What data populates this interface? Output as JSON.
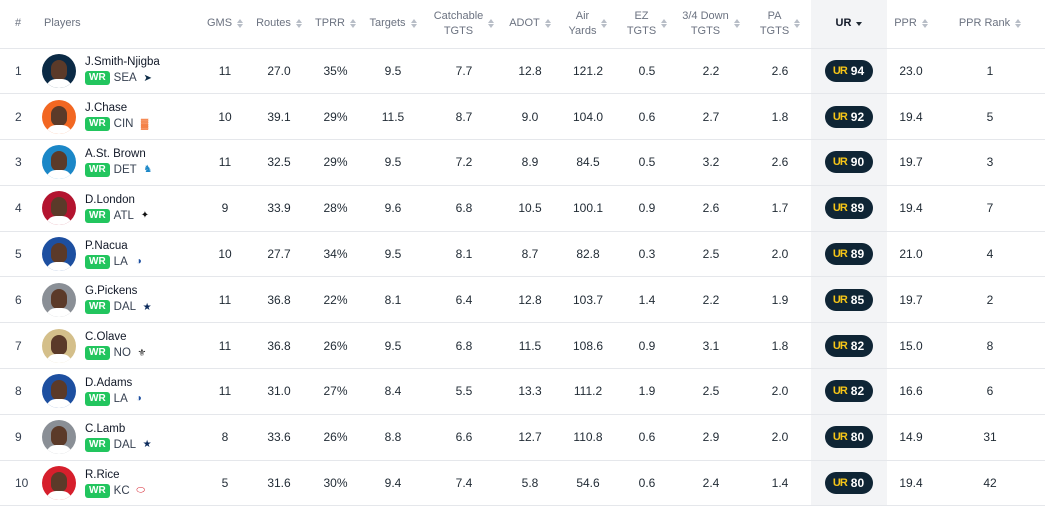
{
  "columns": [
    {
      "key": "rank",
      "label": "#",
      "sortable": false
    },
    {
      "key": "player",
      "label": "Players",
      "sortable": false
    },
    {
      "key": "gms",
      "label": "GMS",
      "sortable": true
    },
    {
      "key": "routes",
      "label": "Routes",
      "sortable": true
    },
    {
      "key": "tprr",
      "label": "TPRR",
      "sortable": true
    },
    {
      "key": "targets",
      "label": "Targets",
      "sortable": true
    },
    {
      "key": "catchable",
      "label": "Catchable\nTGTS",
      "sortable": true
    },
    {
      "key": "adot",
      "label": "ADOT",
      "sortable": true
    },
    {
      "key": "air",
      "label": "Air\nYards",
      "sortable": true
    },
    {
      "key": "ez",
      "label": "EZ\nTGTS",
      "sortable": true
    },
    {
      "key": "down",
      "label": "3/4 Down\nTGTS",
      "sortable": true
    },
    {
      "key": "pa",
      "label": "PA\nTGTS",
      "sortable": true
    },
    {
      "key": "ur",
      "label": "UR",
      "sortable": true,
      "active": true
    },
    {
      "key": "ppr",
      "label": "PPR",
      "sortable": true
    },
    {
      "key": "ppr_rank",
      "label": "PPR Rank",
      "sortable": true
    }
  ],
  "ur_mark": "UR",
  "colors": {
    "position_badge": "#22c55e",
    "ur_badge_bg": "#0f2535",
    "ur_badge_mark": "#f5c518",
    "active_col_bg": "#f3f4f6"
  },
  "rows": [
    {
      "rank": "1",
      "name": "J.Smith-Njigba",
      "pos": "WR",
      "team": "SEA",
      "team_icon": "seahawks-logo-icon",
      "avatar_color": "#0b2a45",
      "gms": "11",
      "routes": "27.0",
      "tprr": "35%",
      "targets": "9.5",
      "catchable": "7.7",
      "adot": "12.8",
      "air": "121.2",
      "ez": "0.5",
      "down": "2.2",
      "pa": "2.6",
      "ur": "94",
      "ppr": "23.0",
      "ppr_rank": "1"
    },
    {
      "rank": "2",
      "name": "J.Chase",
      "pos": "WR",
      "team": "CIN",
      "team_icon": "bengals-logo-icon",
      "avatar_color": "#f26722",
      "gms": "10",
      "routes": "39.1",
      "tprr": "29%",
      "targets": "11.5",
      "catchable": "8.7",
      "adot": "9.0",
      "air": "104.0",
      "ez": "0.6",
      "down": "2.7",
      "pa": "1.8",
      "ur": "92",
      "ppr": "19.4",
      "ppr_rank": "5"
    },
    {
      "rank": "3",
      "name": "A.St. Brown",
      "pos": "WR",
      "team": "DET",
      "team_icon": "lions-logo-icon",
      "avatar_color": "#1b87c7",
      "gms": "11",
      "routes": "32.5",
      "tprr": "29%",
      "targets": "9.5",
      "catchable": "7.2",
      "adot": "8.9",
      "air": "84.5",
      "ez": "0.5",
      "down": "3.2",
      "pa": "2.6",
      "ur": "90",
      "ppr": "19.7",
      "ppr_rank": "3"
    },
    {
      "rank": "4",
      "name": "D.London",
      "pos": "WR",
      "team": "ATL",
      "team_icon": "falcons-logo-icon",
      "avatar_color": "#b3142f",
      "gms": "9",
      "routes": "33.9",
      "tprr": "28%",
      "targets": "9.6",
      "catchable": "6.8",
      "adot": "10.5",
      "air": "100.1",
      "ez": "0.9",
      "down": "2.6",
      "pa": "1.7",
      "ur": "89",
      "ppr": "19.4",
      "ppr_rank": "7"
    },
    {
      "rank": "5",
      "name": "P.Nacua",
      "pos": "WR",
      "team": "LA",
      "team_icon": "rams-logo-icon",
      "avatar_color": "#1d4fa0",
      "gms": "10",
      "routes": "27.7",
      "tprr": "34%",
      "targets": "9.5",
      "catchable": "8.1",
      "adot": "8.7",
      "air": "82.8",
      "ez": "0.3",
      "down": "2.5",
      "pa": "2.0",
      "ur": "89",
      "ppr": "21.0",
      "ppr_rank": "4"
    },
    {
      "rank": "6",
      "name": "G.Pickens",
      "pos": "WR",
      "team": "DAL",
      "team_icon": "cowboys-star-icon",
      "avatar_color": "#8a8f96",
      "gms": "11",
      "routes": "36.8",
      "tprr": "22%",
      "targets": "8.1",
      "catchable": "6.4",
      "adot": "12.8",
      "air": "103.7",
      "ez": "1.4",
      "down": "2.2",
      "pa": "1.9",
      "ur": "85",
      "ppr": "19.7",
      "ppr_rank": "2"
    },
    {
      "rank": "7",
      "name": "C.Olave",
      "pos": "WR",
      "team": "NO",
      "team_icon": "saints-logo-icon",
      "avatar_color": "#d4bf8a",
      "gms": "11",
      "routes": "36.8",
      "tprr": "26%",
      "targets": "9.5",
      "catchable": "6.8",
      "adot": "11.5",
      "air": "108.6",
      "ez": "0.9",
      "down": "3.1",
      "pa": "1.8",
      "ur": "82",
      "ppr": "15.0",
      "ppr_rank": "8"
    },
    {
      "rank": "8",
      "name": "D.Adams",
      "pos": "WR",
      "team": "LA",
      "team_icon": "rams-logo-icon",
      "avatar_color": "#1d4fa0",
      "gms": "11",
      "routes": "31.0",
      "tprr": "27%",
      "targets": "8.4",
      "catchable": "5.5",
      "adot": "13.3",
      "air": "111.2",
      "ez": "1.9",
      "down": "2.5",
      "pa": "2.0",
      "ur": "82",
      "ppr": "16.6",
      "ppr_rank": "6"
    },
    {
      "rank": "9",
      "name": "C.Lamb",
      "pos": "WR",
      "team": "DAL",
      "team_icon": "cowboys-star-icon",
      "avatar_color": "#8a8f96",
      "gms": "8",
      "routes": "33.6",
      "tprr": "26%",
      "targets": "8.8",
      "catchable": "6.6",
      "adot": "12.7",
      "air": "110.8",
      "ez": "0.6",
      "down": "2.9",
      "pa": "2.0",
      "ur": "80",
      "ppr": "14.9",
      "ppr_rank": "31"
    },
    {
      "rank": "10",
      "name": "R.Rice",
      "pos": "WR",
      "team": "KC",
      "team_icon": "chiefs-logo-icon",
      "avatar_color": "#d61f2c",
      "gms": "5",
      "routes": "31.6",
      "tprr": "30%",
      "targets": "9.4",
      "catchable": "7.4",
      "adot": "5.8",
      "air": "54.6",
      "ez": "0.6",
      "down": "2.4",
      "pa": "1.4",
      "ur": "80",
      "ppr": "19.4",
      "ppr_rank": "42"
    }
  ]
}
